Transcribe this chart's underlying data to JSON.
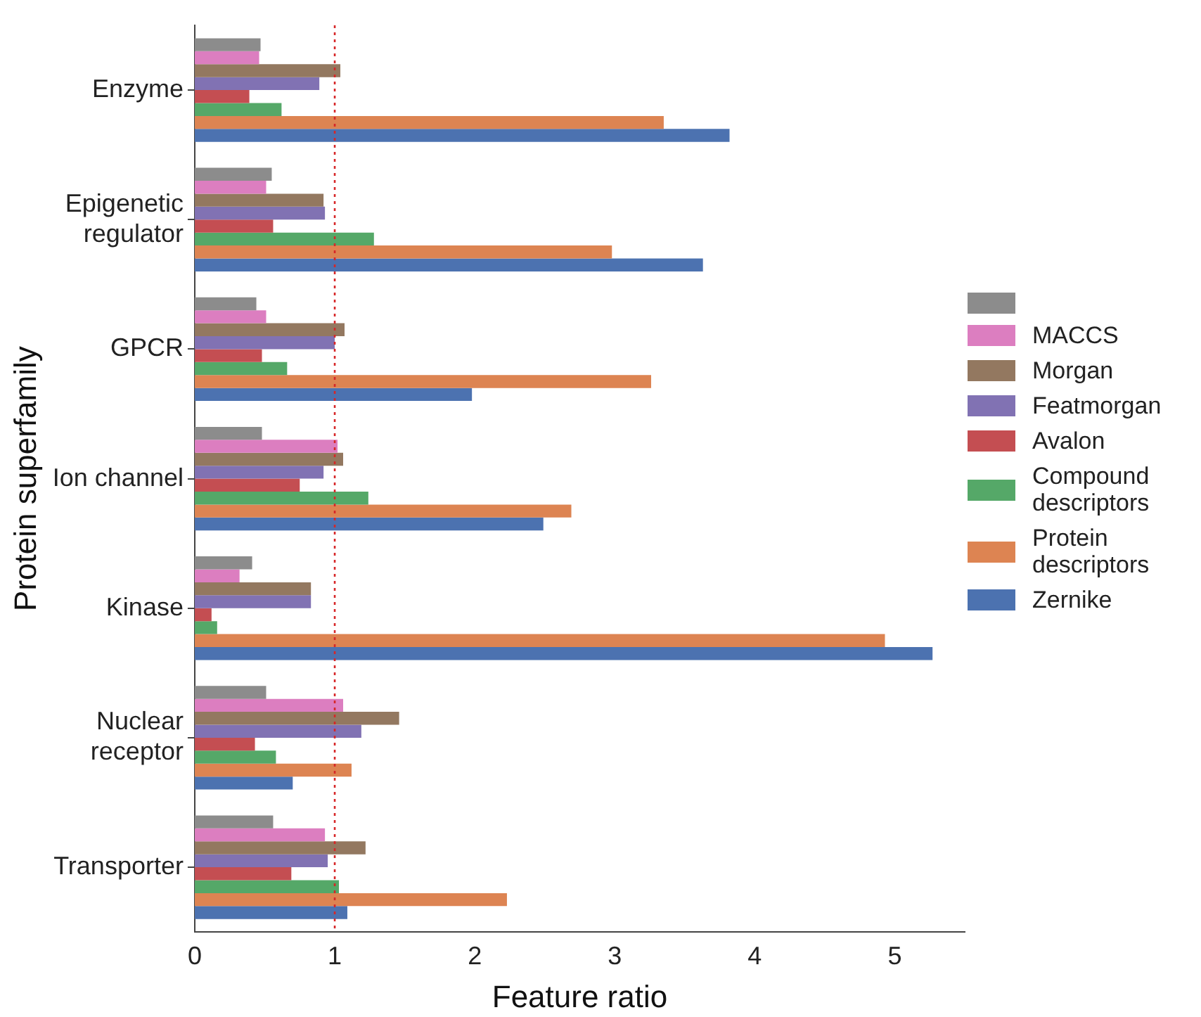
{
  "chart_data": {
    "type": "bar",
    "orientation": "horizontal",
    "xlabel": "Feature ratio",
    "ylabel": "Protein superfamily",
    "categories": [
      "Enzyme",
      "Epigenetic regulator",
      "GPCR",
      "Ion channel",
      "Kinase",
      "Nuclear receptor",
      "Transporter"
    ],
    "series": [
      {
        "color": "#8c8c8c",
        "values": [
          0.47,
          0.55,
          0.44,
          0.48,
          0.41,
          0.51,
          0.56
        ]
      },
      {
        "name": "MACCS",
        "color": "#dc7ec0",
        "values": [
          0.46,
          0.51,
          0.51,
          1.02,
          0.32,
          1.06,
          0.93
        ]
      },
      {
        "name": "Morgan",
        "color": "#937860",
        "values": [
          1.04,
          0.92,
          1.07,
          1.06,
          0.83,
          1.46,
          1.22
        ]
      },
      {
        "name": "Featmorgan",
        "color": "#8172b3",
        "values": [
          0.89,
          0.93,
          1.0,
          0.92,
          0.83,
          1.19,
          0.95
        ]
      },
      {
        "name": "Avalon",
        "color": "#c44e52",
        "values": [
          0.39,
          0.56,
          0.48,
          0.75,
          0.12,
          0.43,
          0.69
        ]
      },
      {
        "name": "Compound descriptors",
        "color": "#55a868",
        "values": [
          0.62,
          1.28,
          0.66,
          1.24,
          0.16,
          0.58,
          1.03
        ]
      },
      {
        "name": "Protein descriptors",
        "color": "#dd8452",
        "values": [
          3.35,
          2.98,
          3.26,
          2.69,
          4.93,
          1.12,
          2.23
        ]
      },
      {
        "name": "Zernike",
        "color": "#4c72b0",
        "values": [
          3.82,
          3.63,
          1.98,
          2.49,
          5.27,
          0.7,
          1.09
        ]
      }
    ],
    "xlim": [
      0,
      5.5
    ],
    "xticks": [
      0,
      1,
      2,
      3,
      4,
      5
    ],
    "ref_lines": [
      {
        "axis": "x",
        "value": 1,
        "color": "#d62728",
        "line_style": "dotted"
      }
    ],
    "grid": false,
    "legend": "right"
  }
}
